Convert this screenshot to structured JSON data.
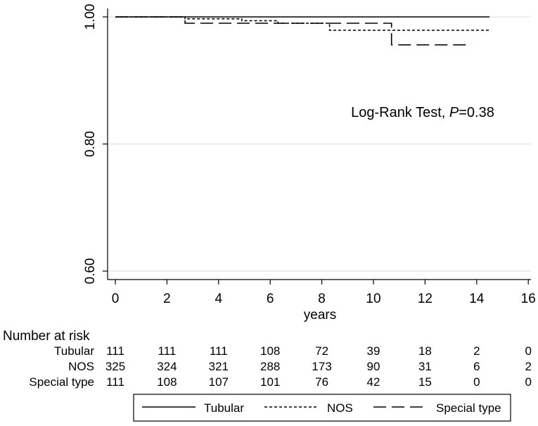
{
  "chart_data": {
    "type": "line",
    "subtype": "kaplan-meier",
    "xlabel": "years",
    "ylabel": "",
    "xlim": [
      -0.3,
      16
    ],
    "ylim": [
      0.6,
      1.0
    ],
    "x_ticks": [
      0,
      2,
      4,
      6,
      8,
      10,
      12,
      14,
      16
    ],
    "y_ticks": [
      0.6,
      0.8,
      1.0
    ],
    "y_tick_labels": [
      "0.60",
      "0.80",
      "1.00"
    ],
    "grid": "horizontal",
    "annotation": {
      "prefix": "Log-Rank Test, ",
      "italic": "P",
      "suffix": "=0.38"
    },
    "series": [
      {
        "name": "Tubular",
        "style": "solid",
        "steps": [
          [
            0,
            1.0
          ],
          [
            14.5,
            1.0
          ]
        ]
      },
      {
        "name": "NOS",
        "style": "short-dash",
        "steps": [
          [
            0,
            1.0
          ],
          [
            2.7,
            1.0
          ],
          [
            2.7,
            0.997
          ],
          [
            4.9,
            0.997
          ],
          [
            4.9,
            0.994
          ],
          [
            6.3,
            0.994
          ],
          [
            6.3,
            0.99
          ],
          [
            8.3,
            0.99
          ],
          [
            8.3,
            0.979
          ],
          [
            14.5,
            0.979
          ]
        ]
      },
      {
        "name": "Special type",
        "style": "long-dash",
        "steps": [
          [
            0,
            1.0
          ],
          [
            2.7,
            1.0
          ],
          [
            2.7,
            0.99
          ],
          [
            6.5,
            0.99
          ],
          [
            6.5,
            0.99
          ],
          [
            10.7,
            0.99
          ],
          [
            10.7,
            0.956
          ],
          [
            13.8,
            0.956
          ]
        ]
      }
    ],
    "risk_table": {
      "title": "Number at risk",
      "rows": [
        {
          "label": "Tubular",
          "values": [
            111,
            111,
            111,
            108,
            72,
            39,
            18,
            2,
            0
          ]
        },
        {
          "label": "NOS",
          "values": [
            325,
            324,
            321,
            288,
            173,
            90,
            31,
            6,
            2
          ]
        },
        {
          "label": "Special type",
          "values": [
            111,
            108,
            107,
            101,
            76,
            42,
            15,
            0,
            0
          ]
        }
      ]
    },
    "legend": {
      "position": "bottom",
      "entries": [
        "Tubular",
        "NOS",
        "Special type"
      ]
    }
  }
}
